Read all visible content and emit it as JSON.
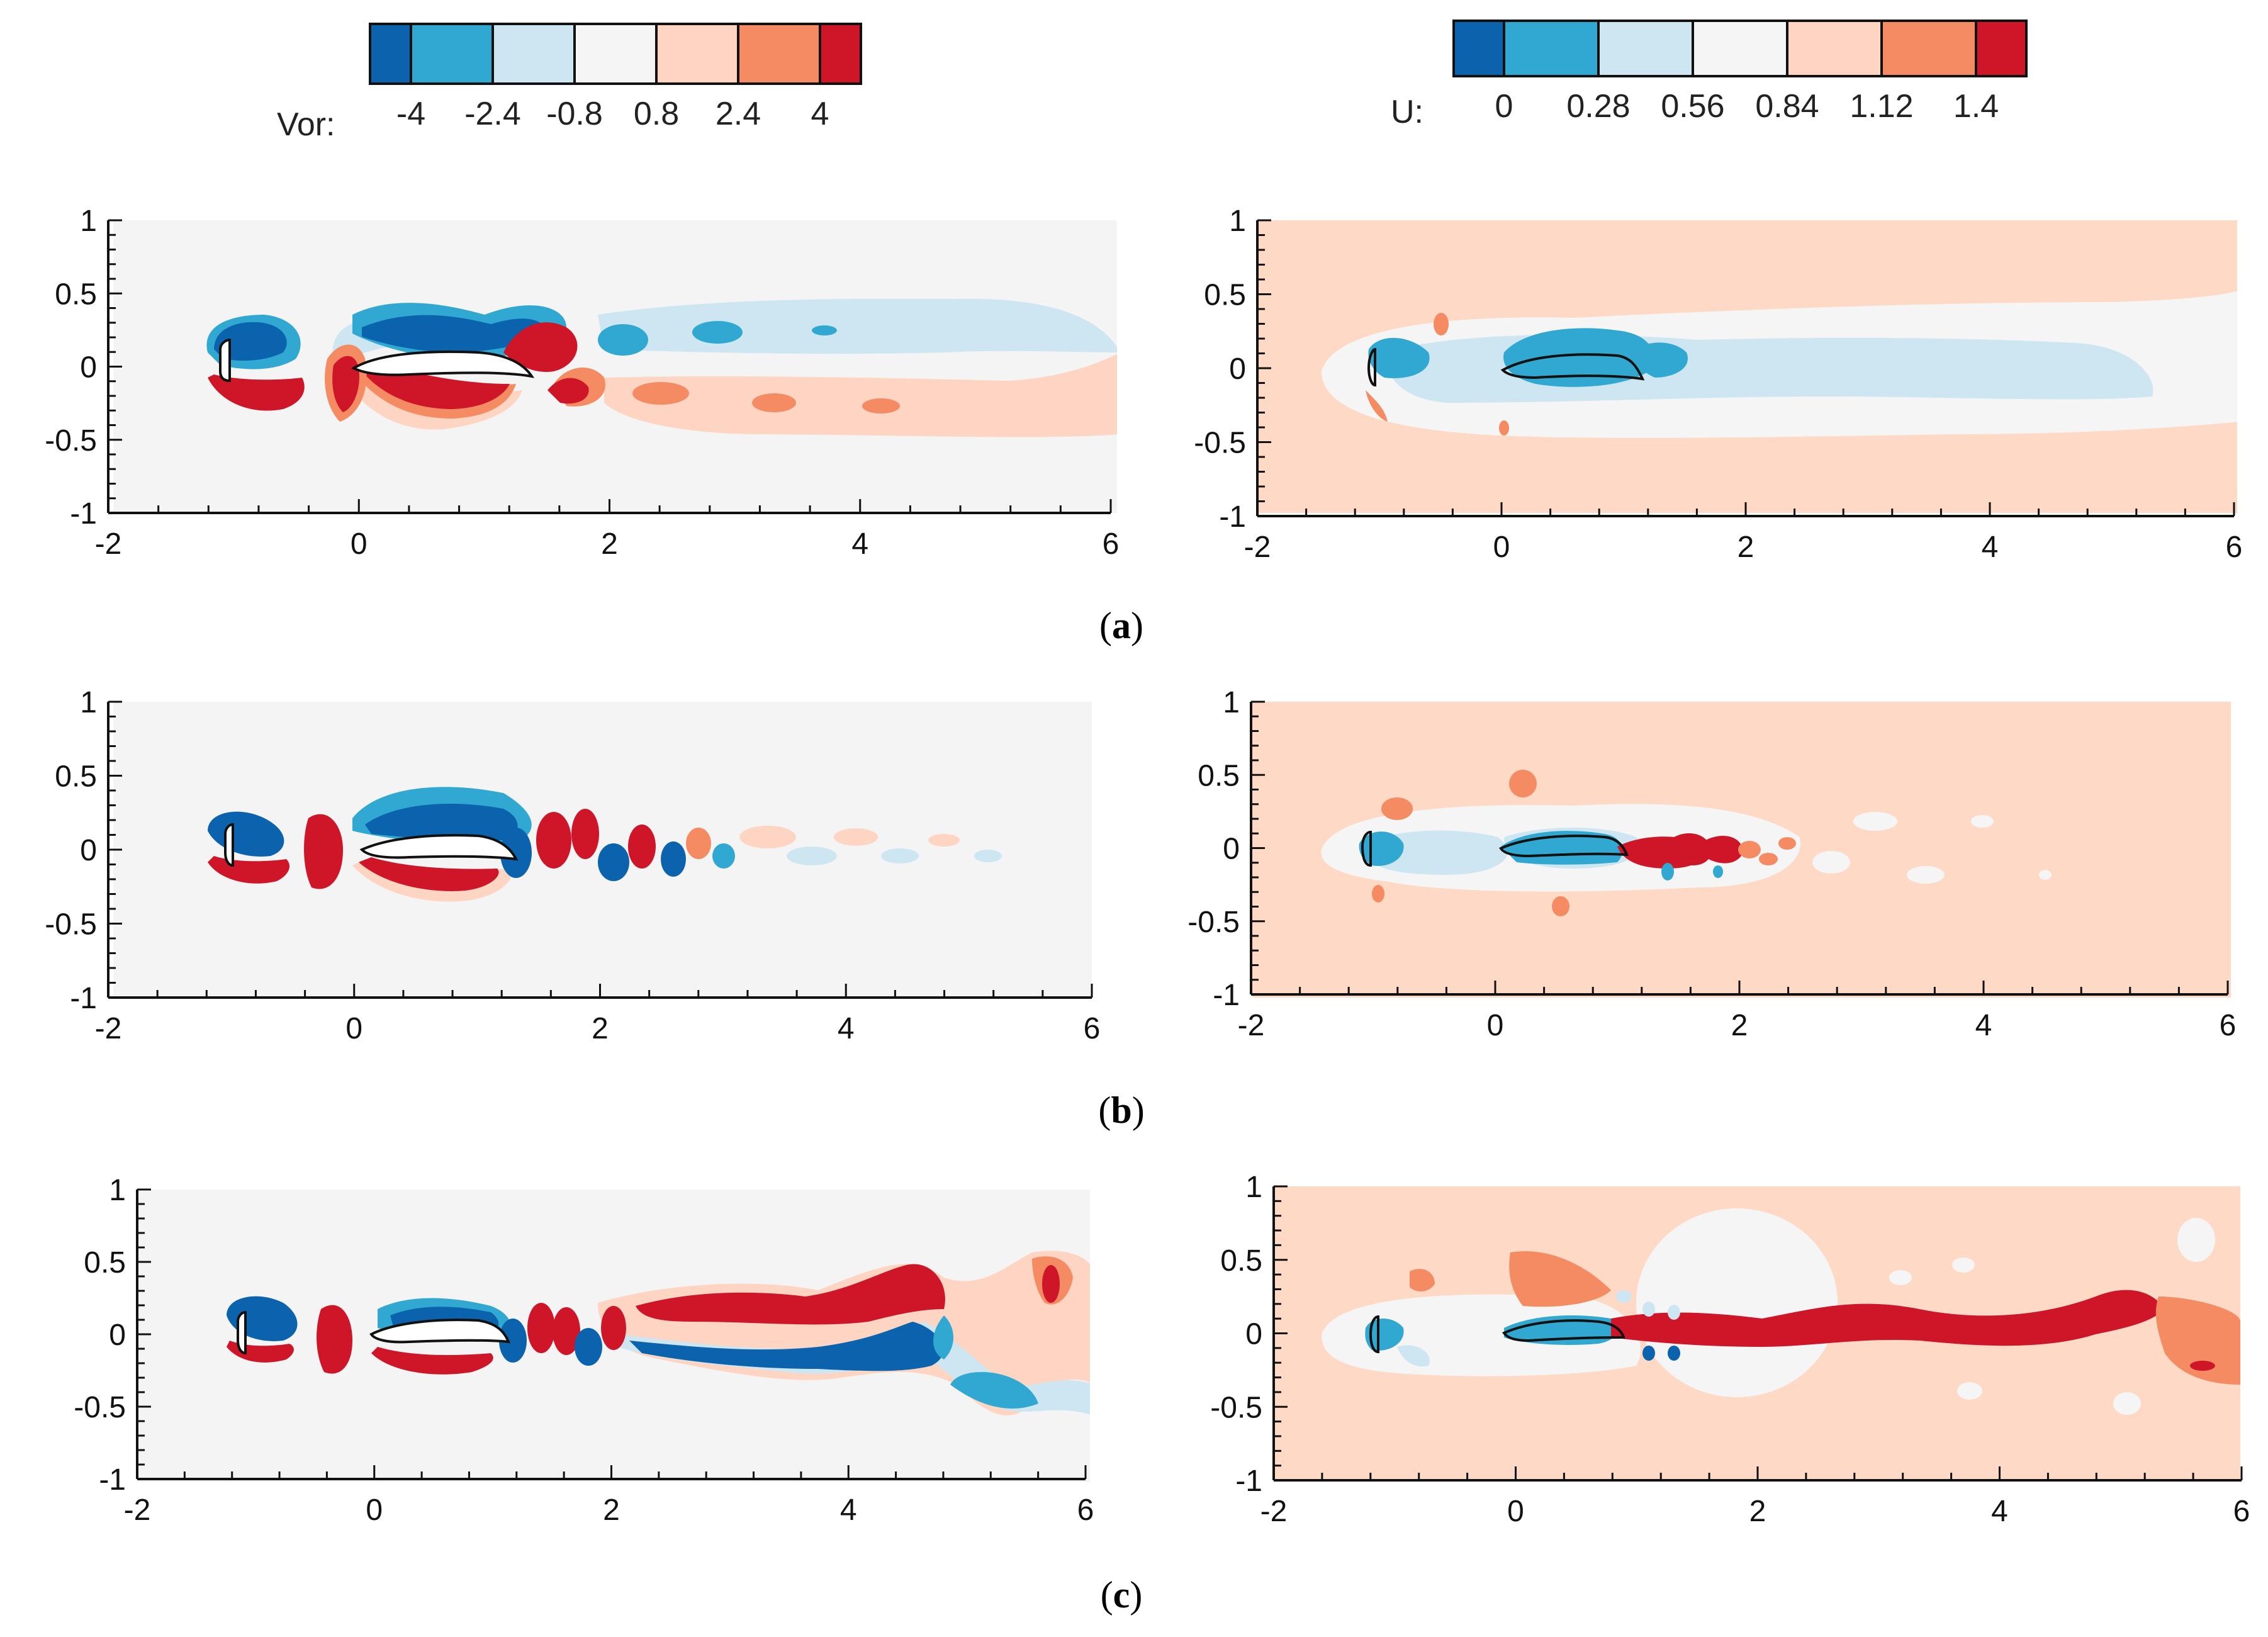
{
  "colors": {
    "vor": [
      "#0b63ae",
      "#31a8d2",
      "#cde6f2",
      "#f5f5f5",
      "#fdd5c2",
      "#f58b62",
      "#cf1528"
    ],
    "u": [
      "#0b63ae",
      "#31a8d2",
      "#cde6f2",
      "#f5f5f5",
      "#fdd5c2",
      "#f58b62",
      "#cf1528"
    ],
    "plot_bg_vor": "#f4f4f4",
    "plot_bg_u": "#fdd9c6"
  },
  "legend_vor": {
    "label": "Vor:",
    "ticks": [
      "-4",
      "-2.4",
      "-0.8",
      "0.8",
      "2.4",
      "4"
    ]
  },
  "legend_u": {
    "label": "U:",
    "ticks": [
      "0",
      "0.28",
      "0.56",
      "0.84",
      "1.12",
      "1.4"
    ]
  },
  "axes": {
    "x_ticks": [
      "-2",
      "0",
      "2",
      "4",
      "6"
    ],
    "y_ticks": [
      "1",
      "0.5",
      "0",
      "-0.5",
      "-1"
    ]
  },
  "rows": [
    {
      "label": "a",
      "caption_open": "(",
      "caption_close": ")"
    },
    {
      "label": "b",
      "caption_open": "(",
      "caption_close": ")"
    },
    {
      "label": "c",
      "caption_open": "(",
      "caption_close": ")"
    }
  ]
}
